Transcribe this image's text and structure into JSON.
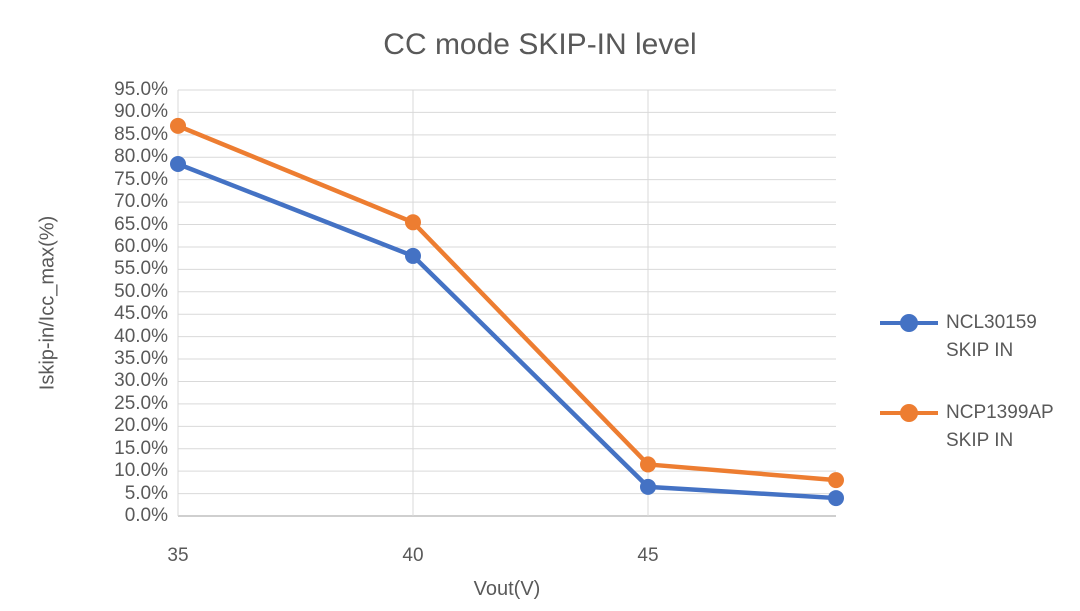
{
  "chart_data": {
    "type": "line",
    "title": "CC mode SKIP-IN level",
    "xlabel": "Vout(V)",
    "ylabel": "Iskip-in/Icc_max(%)",
    "x": [
      35,
      40,
      45,
      49
    ],
    "series": [
      {
        "name": "NCL30159 SKIP IN",
        "legend_lines": [
          "NCL30159",
          "SKIP IN"
        ],
        "color": "#4472C4",
        "values": [
          78.5,
          58.0,
          6.5,
          4.0
        ]
      },
      {
        "name": "NCP1399AP SKIP IN",
        "legend_lines": [
          "NCP1399AP",
          "SKIP IN"
        ],
        "color": "#ED7D31",
        "values": [
          87.0,
          65.5,
          11.5,
          8.0
        ]
      }
    ],
    "xlim": [
      35,
      49
    ],
    "ylim": [
      0,
      95
    ],
    "x_ticks": [
      {
        "value": 35,
        "label": "35"
      },
      {
        "value": 40,
        "label": "40"
      },
      {
        "value": 45,
        "label": "45"
      }
    ],
    "x_gridlines": [
      40,
      45
    ],
    "y_ticks": [
      {
        "value": 95,
        "label": "95.0%"
      },
      {
        "value": 90,
        "label": "90.0%"
      },
      {
        "value": 85,
        "label": "85.0%"
      },
      {
        "value": 80,
        "label": "80.0%"
      },
      {
        "value": 75,
        "label": "75.0%"
      },
      {
        "value": 70,
        "label": "70.0%"
      },
      {
        "value": 65,
        "label": "65.0%"
      },
      {
        "value": 60,
        "label": "60.0%"
      },
      {
        "value": 55,
        "label": "55.0%"
      },
      {
        "value": 50,
        "label": "50.0%"
      },
      {
        "value": 45,
        "label": "45.0%"
      },
      {
        "value": 40,
        "label": "40.0%"
      },
      {
        "value": 35,
        "label": "35.0%"
      },
      {
        "value": 30,
        "label": "30.0%"
      },
      {
        "value": 25,
        "label": "25.0%"
      },
      {
        "value": 20,
        "label": "20.0%"
      },
      {
        "value": 15,
        "label": "15.0%"
      },
      {
        "value": 10,
        "label": "10.0%"
      },
      {
        "value": 5,
        "label": "5.0%"
      },
      {
        "value": 0,
        "label": "0.0%"
      }
    ],
    "grid": true,
    "legend_position": "right",
    "colors": {
      "grid": "#D9D9D9",
      "axis_line": "#BFBFBF",
      "text": "#595959",
      "background": "#FFFFFF"
    }
  }
}
